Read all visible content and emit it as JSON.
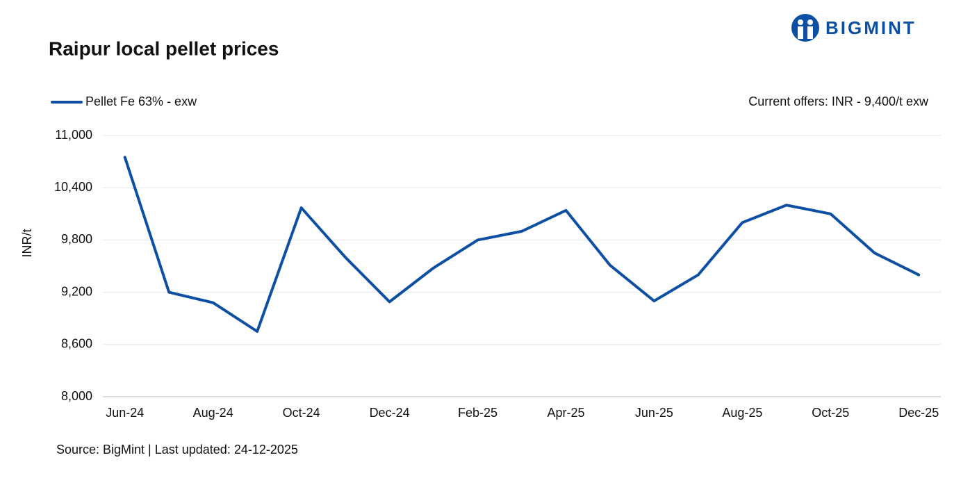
{
  "logo": "BIGMINT",
  "chart_data": {
    "type": "line",
    "title": "Raipur local pellet prices",
    "y_label": "INR/t",
    "annotation": "Current offers: INR - 9,400/t exw",
    "source": "Source: BigMint | Last updated: 24-12-2025",
    "categories": [
      "Jun-24",
      null,
      "Aug-24",
      null,
      "Oct-24",
      null,
      "Dec-24",
      null,
      "Feb-25",
      null,
      "Apr-25",
      null,
      "Jun-25",
      null,
      "Aug-25",
      null,
      "Oct-25",
      null,
      "Dec-25"
    ],
    "series": [
      {
        "name": "Pellet Fe 63% - exw",
        "color": "#0d4fa3",
        "values": [
          10750,
          9200,
          9080,
          8750,
          10170,
          9600,
          9090,
          9480,
          9800,
          9900,
          10140,
          9510,
          9100,
          9400,
          10000,
          10200,
          10100,
          9650,
          9400
        ]
      }
    ],
    "ylim": [
      8000,
      11000
    ],
    "yticks": [
      {
        "value": 8000,
        "label": "8,000"
      },
      {
        "value": 8600,
        "label": "8,600"
      },
      {
        "value": 9200,
        "label": "9,200"
      },
      {
        "value": 9800,
        "label": "9,800"
      },
      {
        "value": 10400,
        "label": "10,400"
      },
      {
        "value": 11000,
        "label": "11,000"
      }
    ],
    "grid": true,
    "legend": "top-left"
  }
}
